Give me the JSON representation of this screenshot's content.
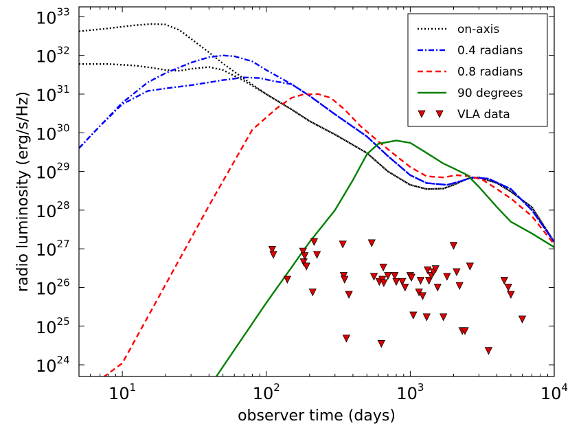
{
  "chart_data": {
    "type": "line",
    "xscale": "log",
    "yscale": "log",
    "xlim": [
      5,
      10000
    ],
    "ylim": [
      5e+23,
      1.8e+33
    ],
    "xlabel": "observer time (days)",
    "ylabel": "radio luminosity (erg/s/Hz)",
    "legend_position": "top-right",
    "x_ticks": [
      {
        "base": "10",
        "exp": "1",
        "value": 10
      },
      {
        "base": "10",
        "exp": "2",
        "value": 100
      },
      {
        "base": "10",
        "exp": "3",
        "value": 1000
      },
      {
        "base": "10",
        "exp": "4",
        "value": 10000
      }
    ],
    "y_ticks": [
      {
        "base": "10",
        "exp": "24",
        "value": 1e+24
      },
      {
        "base": "10",
        "exp": "25",
        "value": 1e+25
      },
      {
        "base": "10",
        "exp": "26",
        "value": 1e+26
      },
      {
        "base": "10",
        "exp": "27",
        "value": 1e+27
      },
      {
        "base": "10",
        "exp": "28",
        "value": 1e+28
      },
      {
        "base": "10",
        "exp": "29",
        "value": 1e+29
      },
      {
        "base": "10",
        "exp": "30",
        "value": 1e+30
      },
      {
        "base": "10",
        "exp": "31",
        "value": 1e+31
      },
      {
        "base": "10",
        "exp": "32",
        "value": 1e+32
      },
      {
        "base": "10",
        "exp": "33",
        "value": 1e+33
      }
    ],
    "series": [
      {
        "name": "on-axis",
        "label": "on-axis",
        "color": "#000000",
        "style": "dotted",
        "x": [
          5,
          8,
          12,
          16,
          20,
          25,
          30,
          40,
          50,
          70,
          100,
          150,
          200,
          300,
          500,
          700,
          1000,
          1300,
          1700,
          2000,
          2500,
          3000,
          4000,
          5000,
          7000,
          10000
        ],
        "y": [
          4.2e+32,
          5e+32,
          6e+32,
          6.5e+32,
          6.3e+32,
          4.5e+32,
          2.7e+32,
          1.2e+32,
          6.2e+31,
          2.5e+31,
          1e+31,
          4e+30,
          2e+30,
          9e+29,
          3e+29,
          1e+29,
          4.5e+28,
          3.5e+28,
          3.6e+28,
          4.5e+28,
          6.5e+28,
          7e+28,
          5e+28,
          3e+28,
          1.2e+28,
          1.5e+27
        ]
      },
      {
        "name": "on-axis (second curve)",
        "label": "",
        "color": "#000000",
        "style": "dotted",
        "x": [
          5,
          8,
          12,
          16,
          20,
          25,
          30,
          40,
          50,
          70,
          100,
          150,
          200,
          300,
          500,
          700,
          1000,
          1300,
          1700,
          2000,
          2500,
          3000,
          4000,
          5000,
          7000,
          10000
        ],
        "y": [
          6e+31,
          6e+31,
          5.5e+31,
          4.8e+31,
          4.2e+31,
          4e+31,
          4.5e+31,
          5e+31,
          4.2e+31,
          2.2e+31,
          1e+31,
          4e+30,
          2e+30,
          9e+29,
          3e+29,
          1e+29,
          4.5e+28,
          3.5e+28,
          3.6e+28,
          4.5e+28,
          6.5e+28,
          7e+28,
          5e+28,
          3e+28,
          1.2e+28,
          1.5e+27
        ]
      },
      {
        "name": "0.4 radians",
        "label": "0.4 radians",
        "color": "#0000ff",
        "style": "dashdot",
        "x": [
          5,
          7,
          10,
          15,
          20,
          30,
          40,
          50,
          60,
          80,
          100,
          150,
          200,
          300,
          500,
          700,
          1000,
          1300,
          1800,
          2200,
          2700,
          3500,
          5000,
          7000,
          10000
        ],
        "y": [
          4e+29,
          1.5e+30,
          6e+30,
          2e+31,
          3.5e+31,
          6.5e+31,
          9e+31,
          1e+32,
          9.5e+31,
          7e+31,
          4.2e+31,
          1.8e+31,
          9e+30,
          3e+30,
          8e+29,
          2.5e+29,
          8e+28,
          5e+28,
          4.5e+28,
          5.5e+28,
          7e+28,
          6.5e+28,
          3.5e+28,
          1e+28,
          1.5e+27
        ]
      },
      {
        "name": "0.4 radians (second curve)",
        "label": "",
        "color": "#0000ff",
        "style": "dashdot",
        "x": [
          5,
          7,
          10,
          15,
          20,
          30,
          40,
          50,
          70,
          90,
          110,
          150,
          200,
          300,
          500,
          700,
          1000,
          1300,
          1800,
          2200,
          2700,
          3500,
          5000,
          7000,
          10000
        ],
        "y": [
          4e+29,
          1.5e+30,
          5.5e+30,
          1.2e+31,
          1.4e+31,
          1.7e+31,
          2e+31,
          2.3e+31,
          2.7e+31,
          2.6e+31,
          2.2e+31,
          1.8e+31,
          9e+30,
          3e+30,
          8e+29,
          2.5e+29,
          8e+28,
          5e+28,
          4.5e+28,
          5.5e+28,
          7e+28,
          6.5e+28,
          3.5e+28,
          1e+28,
          1.5e+27
        ]
      },
      {
        "name": "0.8 radians",
        "label": "0.8 radians",
        "color": "#ff0000",
        "style": "dashed",
        "x": [
          5,
          7.5,
          10,
          20,
          40,
          80,
          120,
          150,
          180,
          230,
          280,
          350,
          450,
          600,
          800,
          1000,
          1300,
          1700,
          2100,
          2600,
          3200,
          4000,
          5000,
          7000,
          10000
        ],
        "y": [
          1e+23,
          5e+23,
          1.1e+24,
          1.2e+26,
          1.3e+28,
          1.2e+30,
          4.5e+30,
          8e+30,
          9.8e+30,
          1e+31,
          8e+30,
          4e+30,
          1.5e+30,
          6e+29,
          2.5e+29,
          1.3e+29,
          7.5e+28,
          7e+28,
          8e+28,
          7.5e+28,
          6e+28,
          3.5e+28,
          2e+28,
          7e+27,
          1.3e+27
        ]
      },
      {
        "name": "90 degrees",
        "label": "90 degrees",
        "color": "#008000",
        "style": "solid",
        "x": [
          45,
          100,
          200,
          300,
          400,
          500,
          600,
          800,
          1000,
          1300,
          1700,
          2000,
          2500,
          3000,
          4000,
          5000,
          7000,
          10000
        ],
        "y": [
          5e+23,
          4e+25,
          1.5e+27,
          1e+28,
          6e+28,
          2.8e+29,
          5.2e+29,
          6.3e+29,
          5.5e+29,
          3e+29,
          1.6e+29,
          1.2e+29,
          8e+28,
          4e+28,
          1.2e+28,
          5e+27,
          2.5e+27,
          1.1e+27
        ]
      }
    ],
    "scatter": {
      "name": "VLA data",
      "label": "VLA data",
      "color": "#e00000",
      "edge_color": "#000000",
      "marker": "triangle-down",
      "x": [
        110,
        112,
        140,
        180,
        182,
        185,
        190,
        210,
        215,
        225,
        340,
        345,
        350,
        360,
        375,
        540,
        560,
        610,
        630,
        640,
        650,
        655,
        700,
        780,
        800,
        880,
        920,
        1000,
        1020,
        1050,
        1150,
        1180,
        1220,
        1300,
        1320,
        1350,
        1400,
        1450,
        1500,
        1550,
        1700,
        1800,
        2000,
        2100,
        2200,
        2300,
        2400,
        2600,
        3500,
        4500,
        4800,
        5000,
        6000
      ],
      "y": [
        9.5e+26,
        7e+26,
        1.6e+26,
        8.5e+26,
        4.5e+26,
        6.5e+26,
        3.5e+26,
        7.5e+25,
        1.5e+27,
        7e+26,
        1.3e+27,
        2e+26,
        1.6e+26,
        4.8e+24,
        6.5e+25,
        1.4e+27,
        1.9e+26,
        1.4e+26,
        3.5e+24,
        1.6e+26,
        3.3e+26,
        1.3e+26,
        2e+26,
        2e+26,
        1.4e+26,
        1.4e+26,
        1e+26,
        2e+26,
        1.8e+26,
        1.9e+25,
        7.5e+25,
        1.5e+26,
        6e+25,
        1.7e+25,
        2.8e+26,
        1.5e+26,
        2e+26,
        2.5e+26,
        3e+26,
        1e+26,
        1.7e+25,
        1.9e+26,
        1.2e+27,
        2.5e+26,
        1.1e+26,
        7.5e+24,
        7.5e+24,
        3.5e+26,
        2.3e+24,
        1.5e+26,
        1e+26,
        6.5e+25,
        1.5e+25
      ]
    }
  }
}
